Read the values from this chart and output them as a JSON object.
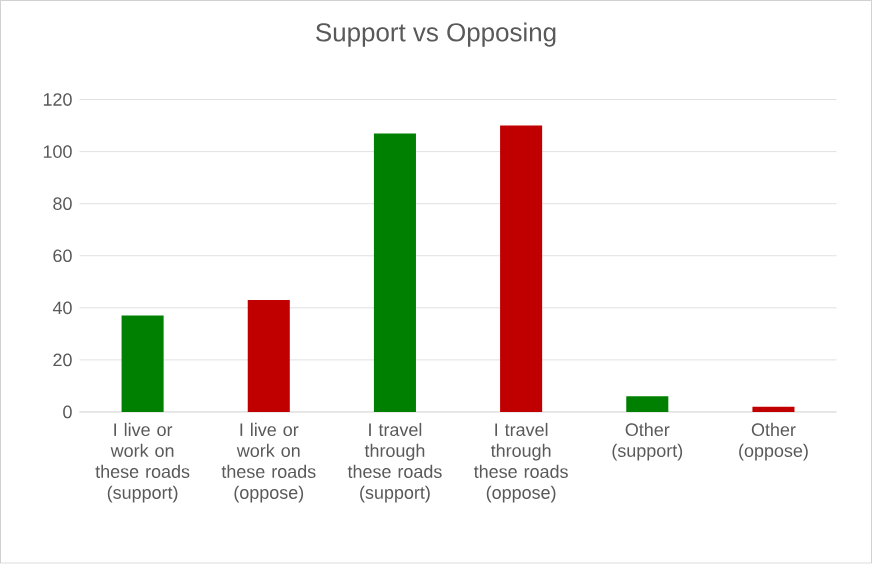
{
  "chart_data": {
    "type": "bar",
    "title": "Support vs Opposing",
    "categories": [
      "I live or work on these roads (support)",
      "I live or work on these roads (oppose)",
      "I travel through these roads (support)",
      "I travel through these roads (oppose)",
      "Other (support)",
      "Other (oppose)"
    ],
    "values": [
      37,
      43,
      107,
      110,
      6,
      2
    ],
    "colors": [
      "#008000",
      "#c00000",
      "#008000",
      "#c00000",
      "#008000",
      "#c00000"
    ],
    "ylim": [
      0,
      120
    ],
    "yticks": [
      0,
      20,
      40,
      60,
      80,
      100,
      120
    ],
    "grid": "y"
  }
}
